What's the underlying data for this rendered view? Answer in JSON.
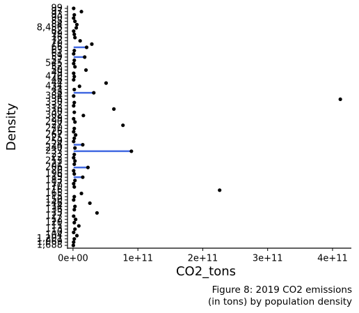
{
  "chart_data": {
    "type": "dot",
    "x_label": "CO2_tons",
    "y_label": "Density",
    "caption": [
      "Figure 8: 2019 CO2 emissions",
      "(in tons) by population density"
    ],
    "categories": [
      "99",
      "97",
      "93",
      "90",
      "88",
      "84",
      "8,456",
      "82",
      "79",
      "76",
      "72",
      "70",
      "66",
      "63",
      "61",
      "59",
      "57",
      "545",
      "52",
      "50",
      "49",
      "470",
      "46",
      "44",
      "434",
      "41",
      "38",
      "384",
      "36",
      "330",
      "33",
      "316",
      "30",
      "302",
      "29",
      "290",
      "27",
      "270",
      "26",
      "267",
      "25",
      "250",
      "24",
      "240",
      "237",
      "23",
      "22",
      "213",
      "21",
      "206",
      "20",
      "196",
      "19",
      "183",
      "17",
      "170",
      "16",
      "165",
      "15",
      "150",
      "146",
      "14",
      "136",
      "13",
      "127",
      "12",
      "120",
      "11",
      "113",
      "10",
      "104",
      "1,201",
      "1,069",
      "1,688"
    ],
    "values": [
      1000000000.0,
      13000000000.0,
      2000000000.0,
      1000000000.0,
      3000000000.0,
      6000000000.0,
      5000000000.0,
      1000000000.0,
      2000000000.0,
      3000000000.0,
      11000000000.0,
      29000000000.0,
      21000000000.0,
      2000000000.0,
      1000000000.0,
      18000000000.0,
      2000000000.0,
      1000000000.0,
      3000000000.0,
      20000000000.0,
      1000000000.0,
      2000000000.0,
      1000000000.0,
      51000000000.0,
      10000000000.0,
      2000000000.0,
      32000000000.0,
      1000000000.0,
      412000000000.0,
      2000000000.0,
      1000000000.0,
      63000000000.0,
      2000000000.0,
      16000000000.0,
      1000000000.0,
      3000000000.0,
      77000000000.0,
      2000000000.0,
      1000000000.0,
      4000000000.0,
      2000000000.0,
      1000000000.0,
      15000000000.0,
      3000000000.0,
      90000000000.0,
      2000000000.0,
      1000000000.0,
      3000000000.0,
      2000000000.0,
      23000000000.0,
      1000000000.0,
      2000000000.0,
      15000000000.0,
      3000000000.0,
      1000000000.0,
      2000000000.0,
      226000000000.0,
      13000000000.0,
      2000000000.0,
      1000000000.0,
      26000000000.0,
      3000000000.0,
      2000000000.0,
      37000000000.0,
      1000000000.0,
      4000000000.0,
      2000000000.0,
      9000000000.0,
      3000000000.0,
      1000000000.0,
      6000000000.0,
      2000000000.0,
      1000000000.0,
      500000000.0
    ],
    "range_start": [
      null,
      null,
      null,
      null,
      null,
      null,
      null,
      null,
      null,
      null,
      null,
      null,
      1000000000.0,
      null,
      null,
      1000000000.0,
      null,
      null,
      null,
      null,
      null,
      null,
      null,
      null,
      null,
      null,
      1000000000.0,
      null,
      null,
      null,
      null,
      null,
      null,
      null,
      null,
      null,
      null,
      null,
      null,
      null,
      null,
      null,
      1000000000.0,
      null,
      1000000000.0,
      null,
      null,
      null,
      null,
      1000000000.0,
      null,
      null,
      1000000000.0,
      null,
      null,
      null,
      null,
      null,
      null,
      null,
      null,
      null,
      null,
      null,
      null,
      null,
      null,
      null,
      null,
      null,
      null,
      null,
      null,
      null
    ],
    "dot_color": "#000000",
    "range_color": "#4169e1",
    "xlim": [
      -8500000000.0,
      429000000000.0
    ],
    "xticks": [
      {
        "value": 0,
        "label": "0e+00"
      },
      {
        "value": 100000000000.0,
        "label": "1e+11"
      },
      {
        "value": 200000000000.0,
        "label": "2e+11"
      },
      {
        "value": 300000000000.0,
        "label": "3e+11"
      },
      {
        "value": 400000000000.0,
        "label": "4e+11"
      }
    ]
  }
}
